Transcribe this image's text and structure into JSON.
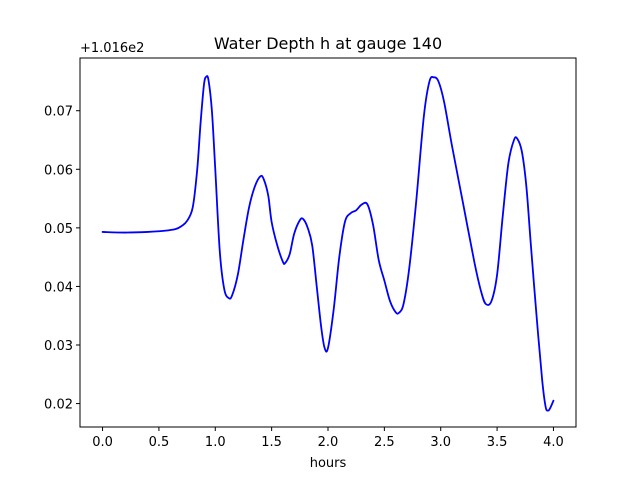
{
  "chart_data": {
    "type": "line",
    "title": "Water Depth h at gauge 140",
    "xlabel": "hours",
    "ylabel": "",
    "y_offset_label": "+1.016e2",
    "xlim": [
      -0.2,
      4.2
    ],
    "ylim": [
      0.016,
      0.079
    ],
    "x_ticks": [
      0.0,
      0.5,
      1.0,
      1.5,
      2.0,
      2.5,
      3.0,
      3.5,
      4.0
    ],
    "x_tick_labels": [
      "0.0",
      "0.5",
      "1.0",
      "1.5",
      "2.0",
      "2.5",
      "3.0",
      "3.5",
      "4.0"
    ],
    "y_ticks": [
      0.02,
      0.03,
      0.04,
      0.05,
      0.06,
      0.07
    ],
    "y_tick_labels": [
      "0.02",
      "0.03",
      "0.04",
      "0.05",
      "0.06",
      "0.07"
    ],
    "grid": false,
    "series": [
      {
        "color": "#0000ff",
        "x": [
          0.0,
          0.2,
          0.4,
          0.55,
          0.65,
          0.7,
          0.75,
          0.8,
          0.84,
          0.87,
          0.9,
          0.92,
          0.94,
          0.97,
          1.0,
          1.04,
          1.08,
          1.12,
          1.15,
          1.2,
          1.25,
          1.3,
          1.35,
          1.4,
          1.43,
          1.47,
          1.5,
          1.55,
          1.6,
          1.62,
          1.66,
          1.7,
          1.75,
          1.78,
          1.82,
          1.86,
          1.9,
          1.94,
          1.97,
          2.0,
          2.05,
          2.1,
          2.15,
          2.2,
          2.25,
          2.3,
          2.35,
          2.4,
          2.45,
          2.5,
          2.55,
          2.6,
          2.63,
          2.67,
          2.72,
          2.78,
          2.85,
          2.9,
          2.94,
          2.98,
          3.03,
          3.1,
          3.2,
          3.3,
          3.36,
          3.4,
          3.45,
          3.5,
          3.55,
          3.6,
          3.65,
          3.68,
          3.72,
          3.76,
          3.8,
          3.85,
          3.9,
          3.93,
          3.95,
          3.97,
          4.0
        ],
        "y": [
          0.0493,
          0.0492,
          0.0493,
          0.0495,
          0.0498,
          0.0503,
          0.0512,
          0.0535,
          0.06,
          0.068,
          0.0745,
          0.0758,
          0.0752,
          0.07,
          0.06,
          0.046,
          0.0395,
          0.038,
          0.0385,
          0.042,
          0.048,
          0.0535,
          0.057,
          0.0588,
          0.0583,
          0.0555,
          0.051,
          0.047,
          0.0442,
          0.044,
          0.0455,
          0.049,
          0.0513,
          0.0515,
          0.05,
          0.047,
          0.04,
          0.033,
          0.0295,
          0.0295,
          0.036,
          0.045,
          0.051,
          0.0525,
          0.053,
          0.054,
          0.054,
          0.0505,
          0.0445,
          0.041,
          0.0375,
          0.0356,
          0.0355,
          0.037,
          0.043,
          0.054,
          0.069,
          0.075,
          0.0757,
          0.075,
          0.0715,
          0.064,
          0.054,
          0.044,
          0.039,
          0.037,
          0.0375,
          0.042,
          0.052,
          0.061,
          0.065,
          0.0652,
          0.063,
          0.057,
          0.047,
          0.035,
          0.024,
          0.0195,
          0.0188,
          0.0192,
          0.0205
        ]
      }
    ]
  }
}
